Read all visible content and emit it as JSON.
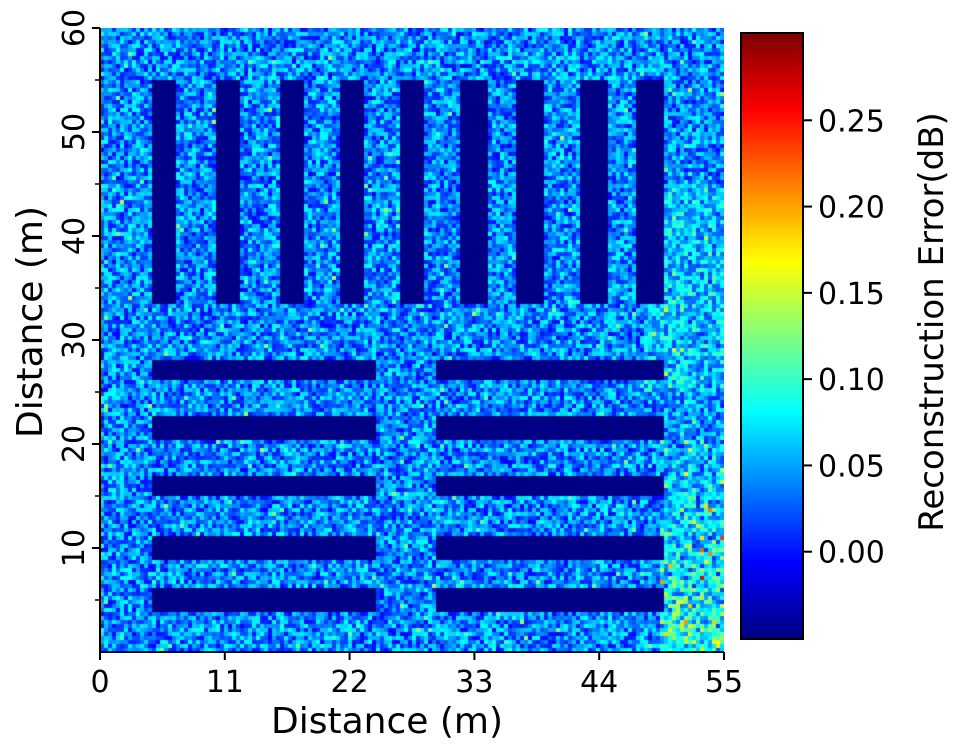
{
  "chart_data": {
    "type": "heatmap",
    "title": "",
    "xlabel": "Distance (m)",
    "ylabel": "Distance (m)",
    "x_ticks": [
      "0",
      "11",
      "22",
      "33",
      "44",
      "55"
    ],
    "y_ticks": [
      "10",
      "20",
      "30",
      "40",
      "50",
      "60"
    ],
    "xlim": [
      0,
      55
    ],
    "ylim": [
      0,
      60
    ],
    "colorbar": {
      "label": "Reconstruction Error(dB)",
      "ticks": [
        "0.00",
        "0.05",
        "0.10",
        "0.15",
        "0.20",
        "0.25"
      ],
      "range": [
        -0.05,
        0.3
      ],
      "colormap": "jet"
    },
    "background_level": 0.045,
    "building_level": -0.05,
    "buildings_vertical": [
      {
        "x": [
          4.5,
          6.8
        ],
        "y": [
          33.5,
          55
        ]
      },
      {
        "x": [
          10.2,
          12.5
        ],
        "y": [
          33.5,
          55
        ]
      },
      {
        "x": [
          15.8,
          18.1
        ],
        "y": [
          33.5,
          55
        ]
      },
      {
        "x": [
          21.2,
          23.3
        ],
        "y": [
          33.5,
          55
        ]
      },
      {
        "x": [
          26.4,
          28.6
        ],
        "y": [
          33.5,
          55
        ]
      },
      {
        "x": [
          31.8,
          34.2
        ],
        "y": [
          33.5,
          55
        ]
      },
      {
        "x": [
          36.8,
          39.2
        ],
        "y": [
          33.5,
          55
        ]
      },
      {
        "x": [
          42.4,
          44.6
        ],
        "y": [
          33.5,
          55
        ]
      },
      {
        "x": [
          47.4,
          49.6
        ],
        "y": [
          33.5,
          55
        ]
      }
    ],
    "buildings_horizontal": [
      {
        "x": [
          4.5,
          24.5
        ],
        "y": [
          26.2,
          28.2
        ]
      },
      {
        "x": [
          29.5,
          49.8
        ],
        "y": [
          26.2,
          28.2
        ]
      },
      {
        "x": [
          4.5,
          24.5
        ],
        "y": [
          20.5,
          22.5
        ]
      },
      {
        "x": [
          29.5,
          49.8
        ],
        "y": [
          20.5,
          22.5
        ]
      },
      {
        "x": [
          4.5,
          24.5
        ],
        "y": [
          15.0,
          17.0
        ]
      },
      {
        "x": [
          29.5,
          49.8
        ],
        "y": [
          15.0,
          17.0
        ]
      },
      {
        "x": [
          4.5,
          24.5
        ],
        "y": [
          9.0,
          11.0
        ]
      },
      {
        "x": [
          29.5,
          49.8
        ],
        "y": [
          9.0,
          11.0
        ]
      },
      {
        "x": [
          4.5,
          24.5
        ],
        "y": [
          3.8,
          6.0
        ]
      },
      {
        "x": [
          29.5,
          49.8
        ],
        "y": [
          3.8,
          6.0
        ]
      }
    ],
    "high_error_region": {
      "x": [
        49.5,
        55
      ],
      "y": [
        0,
        25
      ],
      "peak": 0.16
    }
  }
}
